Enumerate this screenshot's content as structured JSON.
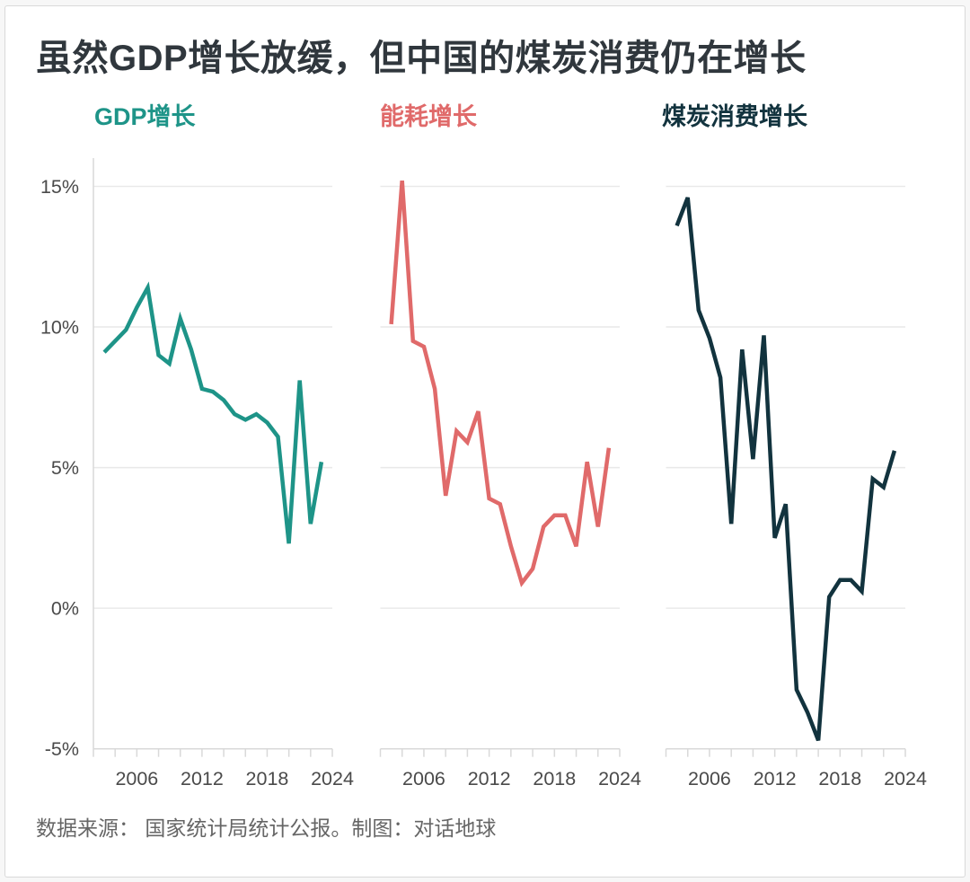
{
  "title": "虽然GDP增长放缓，但中国的煤炭消费仍在增长",
  "footer": "数据来源： 国家统计局统计公报。制图：对话地球",
  "colors": {
    "gdp": "#1e9488",
    "energy": "#e06a6a",
    "coal": "#12333e",
    "title_text": "#30373d",
    "axis_text": "#4a4a4a",
    "grid": "#e9e9e9",
    "spine": "#d9d9d9",
    "footer_text": "#666666",
    "card_bg": "#ffffff",
    "page_bg": "#f7f7f7",
    "card_border": "#d9d9d9"
  },
  "chart_data": {
    "type": "line",
    "layout_hint": "three small-multiple panels sharing one y axis, horizontal gridlines on, no legend (colored panel headers act as legend)",
    "x": [
      2003,
      2004,
      2005,
      2006,
      2007,
      2008,
      2009,
      2010,
      2011,
      2012,
      2013,
      2014,
      2015,
      2016,
      2017,
      2018,
      2019,
      2020,
      2021,
      2022,
      2023
    ],
    "x_domain": [
      2002,
      2024
    ],
    "ylim": [
      -5,
      16
    ],
    "y_ticks": [
      15,
      10,
      5,
      0,
      -5
    ],
    "y_tick_labels": [
      "15%",
      "10%",
      "5%",
      "0%",
      "-5%"
    ],
    "x_ticks_labeled": [
      2006,
      2012,
      2018,
      2024
    ],
    "x_minor_tick_step_years": 2,
    "series": [
      {
        "name": "GDP增长",
        "color_key": "gdp",
        "values": [
          9.1,
          9.5,
          9.9,
          10.7,
          11.4,
          9.0,
          8.7,
          10.3,
          9.2,
          7.8,
          7.7,
          7.4,
          6.9,
          6.7,
          6.9,
          6.6,
          6.1,
          2.3,
          8.1,
          3.0,
          5.2
        ]
      },
      {
        "name": "能耗增长",
        "color_key": "energy",
        "values": [
          10.1,
          15.2,
          9.5,
          9.3,
          7.8,
          4.0,
          6.3,
          5.9,
          7.0,
          3.9,
          3.7,
          2.2,
          0.9,
          1.4,
          2.9,
          3.3,
          3.3,
          2.2,
          5.2,
          2.9,
          5.7
        ]
      },
      {
        "name": "煤炭消费增长",
        "color_key": "coal",
        "values": [
          13.6,
          14.6,
          10.6,
          9.6,
          8.2,
          3.0,
          9.2,
          5.3,
          9.7,
          2.5,
          3.7,
          -2.9,
          -3.7,
          -4.7,
          0.4,
          1.0,
          1.0,
          0.6,
          4.6,
          4.3,
          5.6
        ]
      }
    ]
  }
}
